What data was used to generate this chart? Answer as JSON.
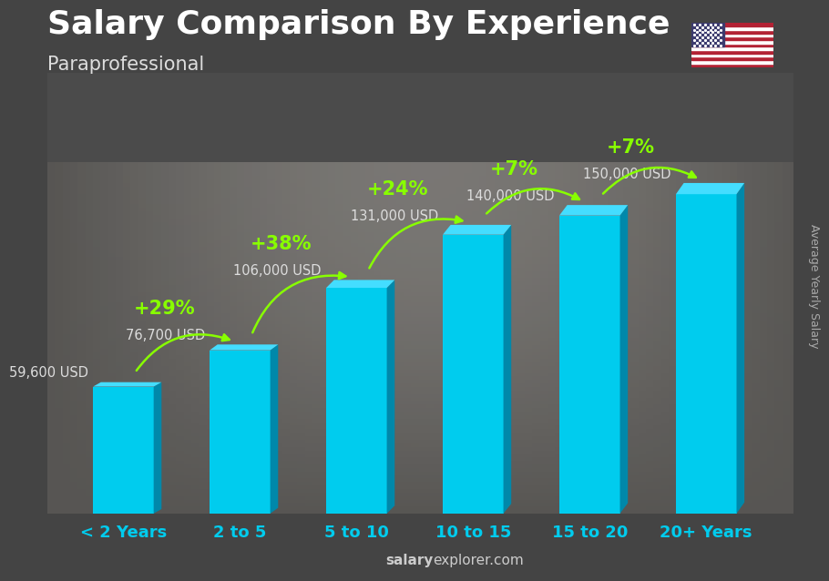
{
  "title": "Salary Comparison By Experience",
  "subtitle": "Paraprofessional",
  "ylabel": "Average Yearly Salary",
  "watermark_bold": "salary",
  "watermark_normal": "explorer.com",
  "categories": [
    "< 2 Years",
    "2 to 5",
    "5 to 10",
    "10 to 15",
    "15 to 20",
    "20+ Years"
  ],
  "values": [
    59600,
    76700,
    106000,
    131000,
    140000,
    150000
  ],
  "value_labels": [
    "59,600 USD",
    "76,700 USD",
    "106,000 USD",
    "131,000 USD",
    "140,000 USD",
    "150,000 USD"
  ],
  "pct_changes": [
    null,
    "+29%",
    "+38%",
    "+24%",
    "+7%",
    "+7%"
  ],
  "bar_face_color": "#00CCEE",
  "bar_side_color": "#0088AA",
  "bar_top_color": "#44DDFF",
  "bg_color": "#555555",
  "overlay_color": "#333333",
  "title_color": "#ffffff",
  "subtitle_color": "#dddddd",
  "value_color": "#dddddd",
  "pct_color": "#88FF00",
  "watermark_color": "#cccccc",
  "ylabel_color": "#aaaaaa",
  "xtick_color": "#00CCEE",
  "title_fontsize": 26,
  "subtitle_fontsize": 15,
  "value_fontsize": 10.5,
  "pct_fontsize": 15,
  "tick_fontsize": 13,
  "ylabel_fontsize": 9,
  "watermark_fontsize": 11
}
